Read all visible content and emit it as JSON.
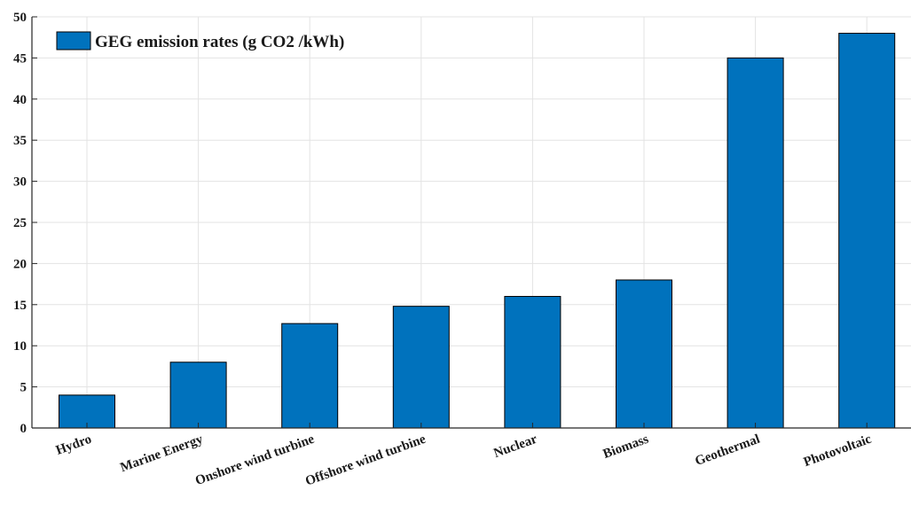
{
  "chart_data": {
    "type": "bar",
    "categories": [
      "Hydro",
      "Marine Energy",
      "Onshore wind turbine",
      "Offshore wind turbine",
      "Nuclear",
      "Biomass",
      "Geothermal",
      "Photovoltaic"
    ],
    "series": [
      {
        "name": "GEG emission rates (g CO2 /kWh)",
        "values": [
          4,
          8,
          12.7,
          14.8,
          16,
          18,
          45,
          48
        ]
      }
    ],
    "title": "",
    "xlabel": "",
    "ylabel": "",
    "ylim": [
      0,
      50
    ],
    "yticks": [
      0,
      5,
      10,
      15,
      20,
      25,
      30,
      35,
      40,
      45,
      50
    ],
    "grid": true,
    "legend_position": "top-left",
    "colors": {
      "bar_fill": "#0072BD",
      "bar_stroke": "#000000",
      "grid": "#e3e3e3",
      "axis": "#262626"
    }
  }
}
